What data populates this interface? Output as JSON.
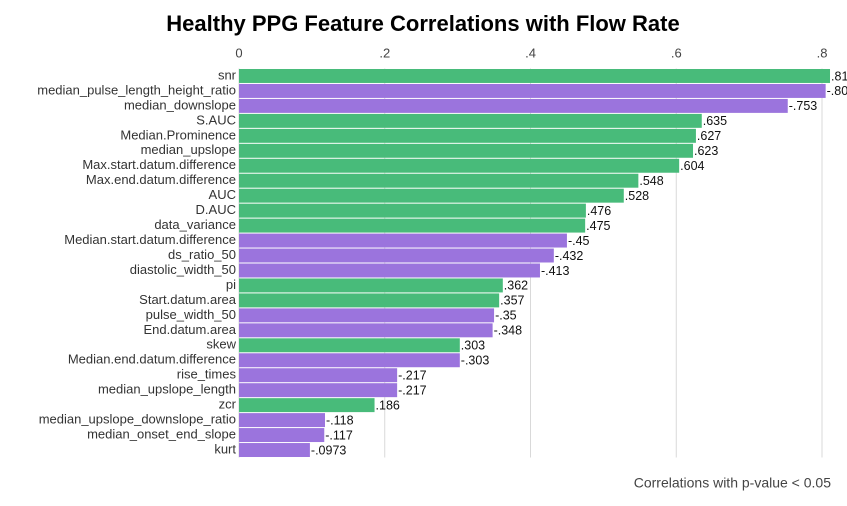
{
  "chart_data": {
    "type": "hbar",
    "title": "Healthy PPG Feature Correlations with Flow Rate",
    "caption": "Correlations with p-value < 0.05",
    "categories": [
      "snr",
      "median_pulse_length_height_ratio",
      "median_downslope",
      "S.AUC",
      "Median.Prominence",
      "median_upslope",
      "Max.start.datum.difference",
      "Max.end.datum.difference",
      "AUC",
      "D.AUC",
      "data_variance",
      "Median.start.datum.difference",
      "ds_ratio_50",
      "diastolic_width_50",
      "pi",
      "Start.datum.area",
      "pulse_width_50",
      "End.datum.area",
      "skew",
      "Median.end.datum.difference",
      "rise_times",
      "median_upslope_length",
      "zcr",
      "median_upslope_downslope_ratio",
      "median_onset_end_slope",
      "kurt"
    ],
    "values": [
      0.811,
      0.805,
      0.753,
      0.635,
      0.627,
      0.623,
      0.604,
      0.548,
      0.528,
      0.476,
      0.475,
      0.45,
      0.432,
      0.413,
      0.362,
      0.357,
      0.35,
      0.348,
      0.303,
      0.303,
      0.217,
      0.217,
      0.186,
      0.118,
      0.117,
      0.0973
    ],
    "value_labels": [
      ".811",
      "-.805",
      "-.753",
      ".635",
      ".627",
      ".623",
      ".604",
      ".548",
      ".528",
      ".476",
      ".475",
      "-.45",
      "-.432",
      "-.413",
      ".362",
      ".357",
      "-.35",
      "-.348",
      ".303",
      "-.303",
      "-.217",
      "-.217",
      ".186",
      "-.118",
      "-.117",
      "-.0973"
    ],
    "colors": [
      "#48bb7a",
      "#9b74dd",
      "#9b74dd",
      "#48bb7a",
      "#48bb7a",
      "#48bb7a",
      "#48bb7a",
      "#48bb7a",
      "#48bb7a",
      "#48bb7a",
      "#48bb7a",
      "#9b74dd",
      "#9b74dd",
      "#9b74dd",
      "#48bb7a",
      "#48bb7a",
      "#9b74dd",
      "#9b74dd",
      "#48bb7a",
      "#9b74dd",
      "#9b74dd",
      "#9b74dd",
      "#48bb7a",
      "#9b74dd",
      "#9b74dd",
      "#9b74dd"
    ],
    "xlim": [
      0,
      0.8
    ],
    "xticks": [
      0,
      {
        "value": 0.2,
        "label": ".2"
      },
      {
        "value": 0.4,
        "label": ".4"
      },
      {
        "value": 0.6,
        "label": ".6"
      },
      {
        "value": 0.8,
        "label": ".8"
      }
    ],
    "grid": true
  }
}
